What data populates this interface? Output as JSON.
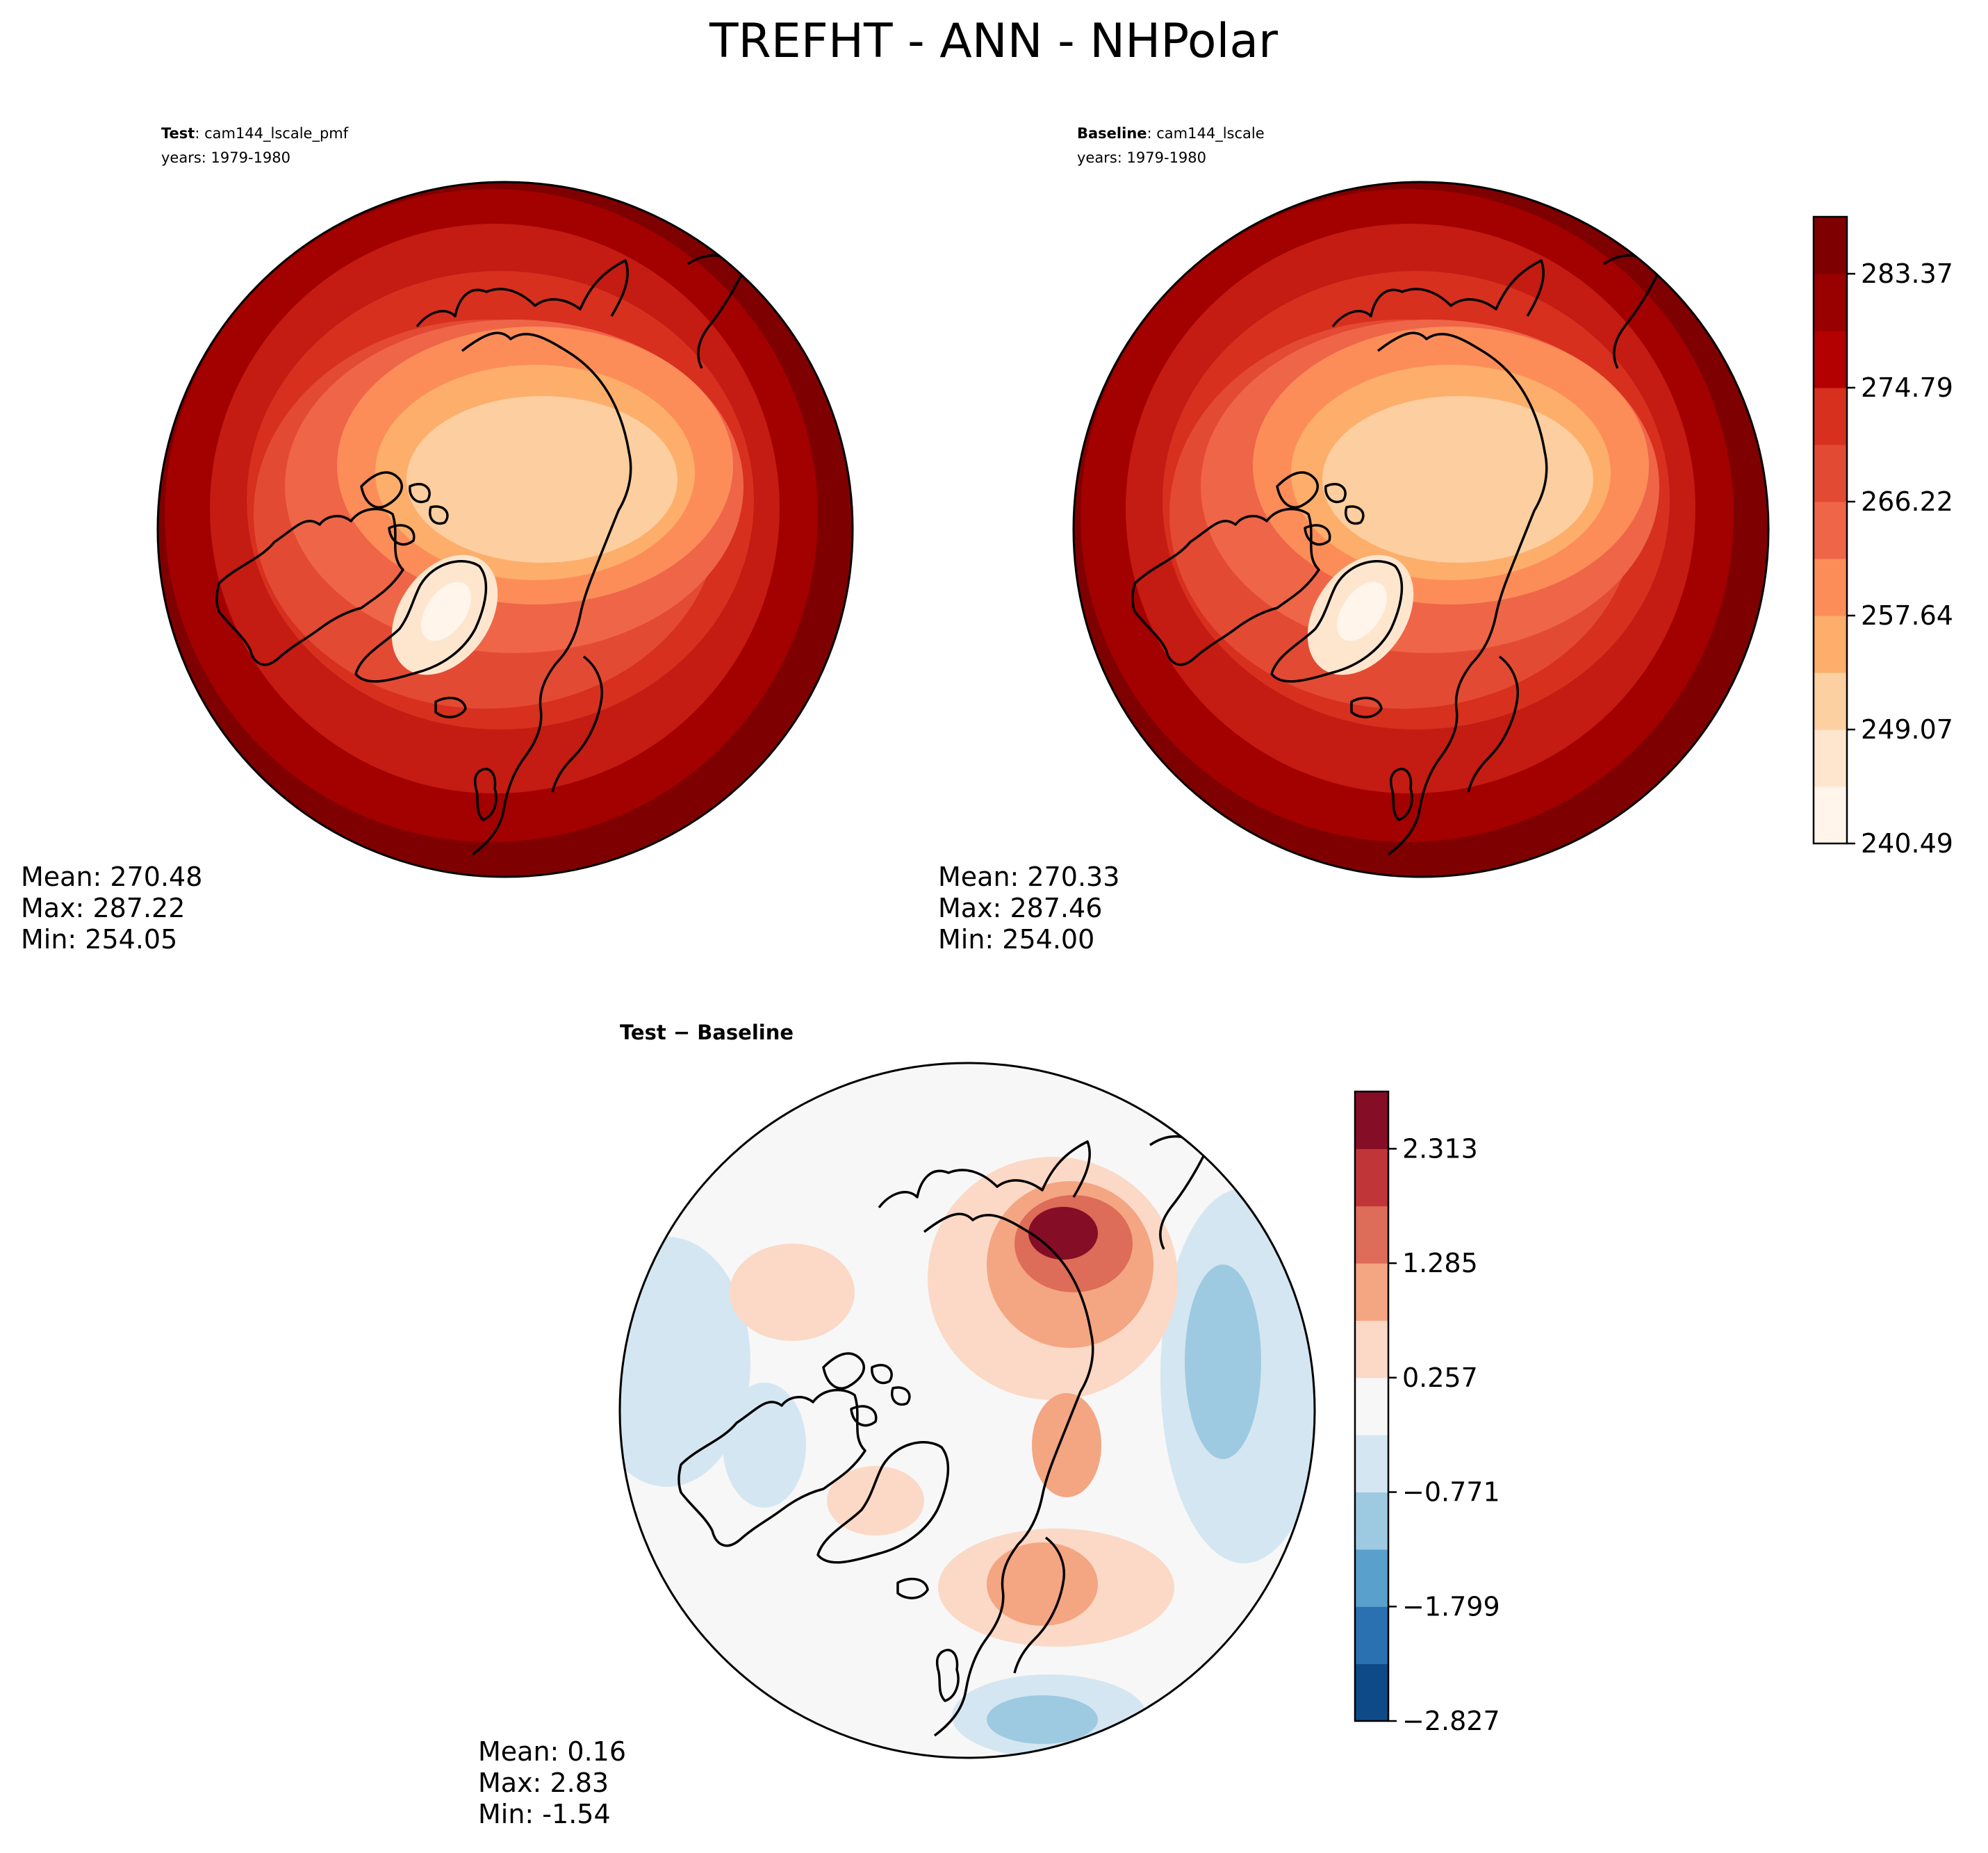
{
  "figure": {
    "title": "TREFHT - ANN - NHPolar"
  },
  "panels": [
    {
      "id": "test",
      "label_bold": "Test",
      "label_rest": ": cam144_lscale_pmf",
      "years": "years: 1979-1980",
      "stats": {
        "mean": "Mean: 270.48",
        "max": "Max: 287.22",
        "min": "Min: 254.05"
      }
    },
    {
      "id": "baseline",
      "label_bold": "Baseline",
      "label_rest": ": cam144_lscale",
      "years": "years: 1979-1980",
      "stats": {
        "mean": "Mean: 270.33",
        "max": "Max: 287.46",
        "min": "Min: 254.00"
      }
    },
    {
      "id": "diff",
      "label_bold": "Test − Baseline",
      "label_rest": "",
      "years": "",
      "stats": {
        "mean": "Mean:  0.16",
        "max": "Max:  2.83",
        "min": "Min: -1.54"
      }
    }
  ],
  "chart_data": [
    {
      "type": "heatmap",
      "projection": "north-polar-stereographic",
      "title": "Test: cam144_lscale_pmf",
      "colorbar": "shared-right",
      "color_levels": 11,
      "value_range": [
        240.49,
        287.46
      ],
      "colorbar_ticks": [
        240.49,
        249.07,
        257.64,
        266.22,
        274.79,
        283.37
      ],
      "colors": [
        "#fff5eb",
        "#fee6ce",
        "#fdd0a2",
        "#fdae6b",
        "#fc8d59",
        "#ef6548",
        "#e34a33",
        "#d7301f",
        "#b30000",
        "#990000",
        "#7f0000"
      ]
    },
    {
      "type": "heatmap",
      "projection": "north-polar-stereographic",
      "title": "Baseline: cam144_lscale",
      "colorbar": "right",
      "colorbar_ticks": [
        240.49,
        249.07,
        257.64,
        266.22,
        274.79,
        283.37
      ],
      "colorbar_tick_labels": [
        "240.49",
        "249.07",
        "257.64",
        "266.22",
        "274.79",
        "283.37"
      ],
      "colors": [
        "#fff5eb",
        "#fee6ce",
        "#fdd0a2",
        "#fdae6b",
        "#fc8d59",
        "#ef6548",
        "#e34a33",
        "#d7301f",
        "#b30000",
        "#990000",
        "#7f0000"
      ]
    },
    {
      "type": "heatmap",
      "projection": "north-polar-stereographic",
      "title": "Test − Baseline",
      "colorbar": "right",
      "value_range": [
        -2.827,
        2.827
      ],
      "colorbar_ticks": [
        -2.827,
        -1.799,
        -0.771,
        0.257,
        1.285,
        2.313
      ],
      "colorbar_tick_labels": [
        "−2.827",
        "−1.799",
        "−0.771",
        "0.257",
        "1.285",
        "2.313"
      ],
      "colors": [
        "#0d4a87",
        "#2a71b2",
        "#5aa0cd",
        "#9dcae1",
        "#d4e6f1",
        "#f7f7f7",
        "#fbd9c6",
        "#f4a582",
        "#dd6c58",
        "#c03638",
        "#850d25"
      ]
    }
  ]
}
